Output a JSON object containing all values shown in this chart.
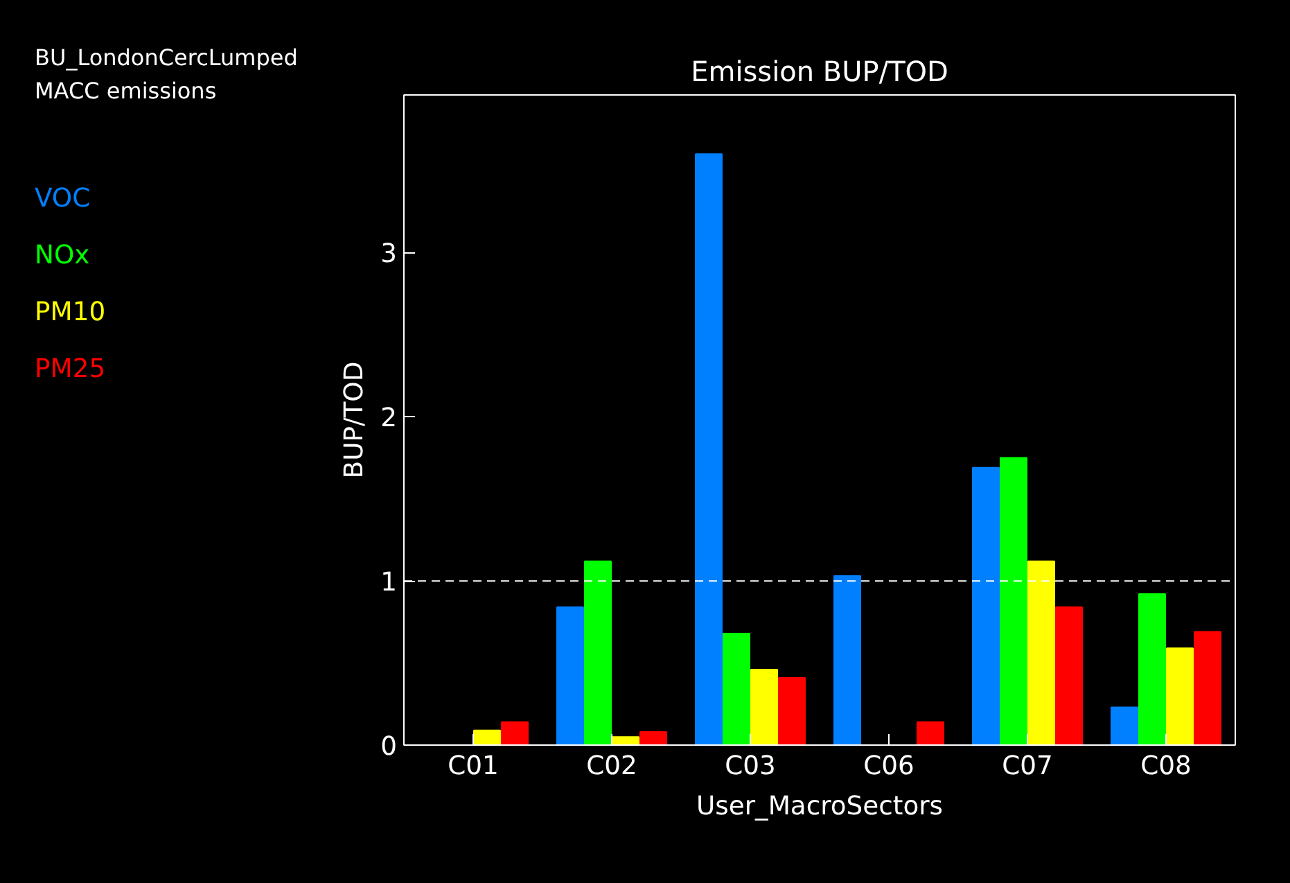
{
  "chart_data": {
    "type": "bar",
    "title": "Emission BUP/TOD",
    "xlabel": "User_MacroSectors",
    "ylabel": "BUP/TOD",
    "annotations": [
      "BU_LondonCercLumped",
      "MACC emissions"
    ],
    "categories": [
      "C01",
      "C02",
      "C03",
      "C06",
      "C07",
      "C08"
    ],
    "series": [
      {
        "name": "VOC",
        "color": "#0080ff",
        "values": [
          0,
          0.84,
          3.6,
          1.03,
          1.69,
          0.23
        ]
      },
      {
        "name": "NOx",
        "color": "#00ff00",
        "values": [
          0,
          1.12,
          0.68,
          0,
          1.75,
          0.92
        ]
      },
      {
        "name": "PM10",
        "color": "#ffff00",
        "values": [
          0.09,
          0.05,
          0.46,
          0,
          1.12,
          0.59
        ]
      },
      {
        "name": "PM25",
        "color": "#ff0000",
        "values": [
          0.14,
          0.08,
          0.41,
          0.14,
          0.84,
          0.69
        ]
      }
    ],
    "ylim": [
      0,
      3.96
    ],
    "yticks": [
      0,
      1,
      2,
      3
    ],
    "ref_lines": [
      {
        "axis": "y",
        "value": 1,
        "color": "#ffffff",
        "line_style": "dashed"
      }
    ],
    "grid": false,
    "legend": "left"
  }
}
